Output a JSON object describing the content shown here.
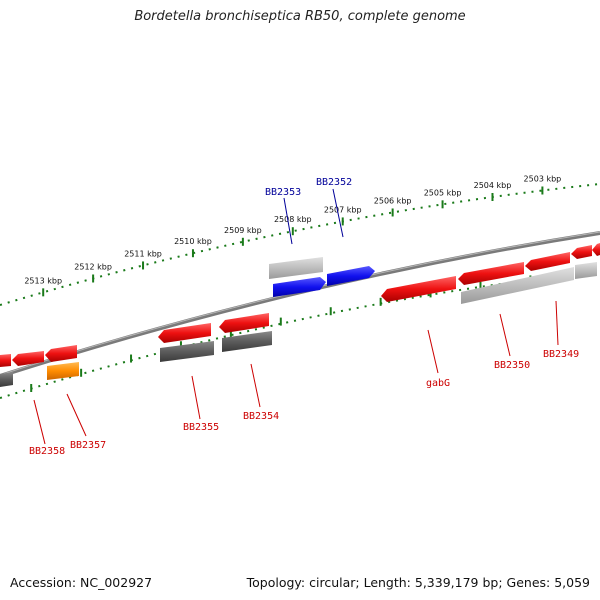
{
  "title": "Bordetella bronchiseptica RB50, complete genome",
  "accession": "Accession: NC_002927",
  "topology": "Topology: circular; Length: 5,339,179 bp; Genes: 5,059",
  "colors": {
    "backbone": "#7a7a7a",
    "ticks": "#1a7a1a",
    "feature_red": "#ee1111",
    "feature_blue": "#1111ee",
    "feature_orange": "#ff8c00",
    "feature_gray": "#5c5c5c",
    "feature_light_gray": "#bdbdbd",
    "label_red": "#cc0000",
    "label_blue": "#000099"
  },
  "scale": {
    "tick_labels": [
      "2513 kbp",
      "2512 kbp",
      "2511 kbp",
      "2510 kbp",
      "2509 kbp",
      "2508 kbp",
      "2507 kbp",
      "2506 kbp",
      "2505 kbp",
      "2504 kbp",
      "2503 kbp"
    ]
  },
  "gene_labels": [
    {
      "name": "BB2353",
      "strand": "forward"
    },
    {
      "name": "BB2352",
      "strand": "forward"
    },
    {
      "name": "BB2358",
      "strand": "reverse"
    },
    {
      "name": "BB2357",
      "strand": "reverse"
    },
    {
      "name": "BB2355",
      "strand": "reverse"
    },
    {
      "name": "BB2354",
      "strand": "reverse"
    },
    {
      "name": "gabG",
      "strand": "reverse"
    },
    {
      "name": "BB2350",
      "strand": "reverse"
    },
    {
      "name": "BB2349",
      "strand": "reverse"
    }
  ]
}
